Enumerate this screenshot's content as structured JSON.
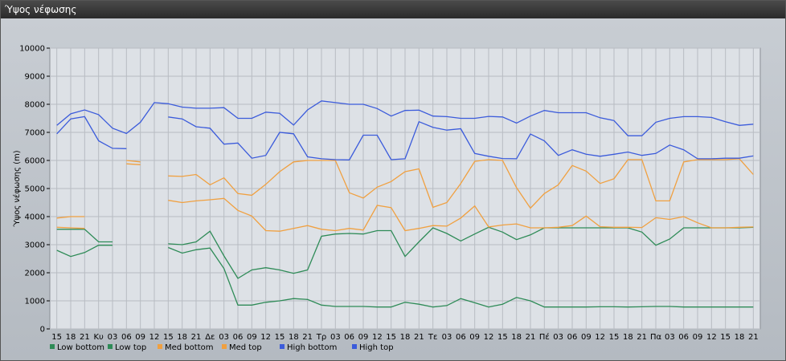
{
  "window": {
    "title": "Ύψος νέφωσης"
  },
  "colors": {
    "low": "#2e8b57",
    "med": "#f0a040",
    "high": "#3b5bdb",
    "grid": "#b8bcc2",
    "plot_bg": "#dde1e6"
  },
  "chart_data": {
    "type": "line",
    "ylabel": "Ύψος νέφωσης (m)",
    "xlabel": "",
    "ylim": [
      0,
      10000
    ],
    "yticks": [
      0,
      1000,
      2000,
      3000,
      4000,
      5000,
      6000,
      7000,
      8000,
      9000,
      10000
    ],
    "categories": [
      "15",
      "18",
      "21",
      "Κυ",
      "03",
      "06",
      "09",
      "12",
      "15",
      "18",
      "21",
      "Δε",
      "03",
      "06",
      "09",
      "12",
      "15",
      "18",
      "21",
      "Τρ",
      "03",
      "06",
      "09",
      "12",
      "15",
      "18",
      "21",
      "Τε",
      "03",
      "06",
      "09",
      "12",
      "15",
      "18",
      "21",
      "Πέ",
      "03",
      "06",
      "09",
      "12",
      "15",
      "18",
      "21",
      "Πα",
      "03",
      "06",
      "09",
      "12",
      "15",
      "18",
      "21"
    ],
    "legend": [
      "Low bottom",
      "Low top",
      "Med bottom",
      "Med top",
      "High bottom",
      "High top"
    ],
    "legend_position": "bottom-left",
    "series": [
      {
        "name": "Low bottom",
        "color_key": "low",
        "values": [
          2800,
          2580,
          2720,
          2980,
          2980,
          null,
          null,
          null,
          2900,
          2700,
          2820,
          2880,
          2150,
          850,
          850,
          950,
          1000,
          1080,
          1050,
          850,
          800,
          800,
          800,
          780,
          780,
          950,
          880,
          780,
          830,
          1080,
          930,
          780,
          880,
          1120,
          1000,
          780,
          780,
          780,
          780,
          790,
          790,
          780,
          790,
          800,
          800,
          780,
          780,
          780,
          780,
          780,
          780
        ]
      },
      {
        "name": "Low top",
        "color_key": "low",
        "values": [
          3550,
          3550,
          3550,
          3100,
          3100,
          null,
          null,
          null,
          3030,
          3000,
          3100,
          3480,
          2600,
          1800,
          2100,
          2180,
          2100,
          1980,
          2100,
          3300,
          3380,
          3400,
          3380,
          3500,
          3500,
          2580,
          3100,
          3600,
          3400,
          3130,
          3380,
          3620,
          3450,
          3180,
          3350,
          3600,
          3600,
          3600,
          3600,
          3600,
          3600,
          3600,
          3450,
          2980,
          3200,
          3600,
          3600,
          3600,
          3600,
          3600,
          3620
        ]
      },
      {
        "name": "Med bottom",
        "color_key": "med",
        "values": [
          3620,
          3600,
          3580,
          null,
          null,
          null,
          null,
          null,
          4580,
          4500,
          4560,
          4600,
          4650,
          4220,
          4020,
          3500,
          3480,
          3580,
          3680,
          3550,
          3500,
          3580,
          3520,
          4400,
          4320,
          3500,
          3580,
          3680,
          3660,
          3950,
          4380,
          3630,
          3700,
          3740,
          3600,
          3600,
          3620,
          3680,
          4020,
          3640,
          3620,
          3620,
          3610,
          3960,
          3900,
          4000,
          3780,
          3600,
          3600,
          3620,
          3630
        ]
      },
      {
        "name": "Med top",
        "color_key": "med",
        "values": [
          3950,
          4000,
          4000,
          null,
          null,
          null,
          null,
          null,
          5450,
          5430,
          5500,
          5130,
          5380,
          4820,
          4760,
          5150,
          5600,
          5950,
          6000,
          6000,
          6000,
          4850,
          4660,
          5050,
          5250,
          5600,
          5700,
          4330,
          4500,
          5180,
          5970,
          6030,
          6000,
          5030,
          4300,
          4820,
          5130,
          5820,
          5620,
          5180,
          5350,
          6030,
          6030,
          4560,
          4560,
          5950,
          6030,
          6030,
          6030,
          6060,
          5500
        ]
      },
      {
        "name": "High bottom",
        "color_key": "high",
        "values": [
          6950,
          7480,
          7560,
          6700,
          6430,
          6420,
          null,
          null,
          7550,
          7480,
          7200,
          7150,
          6580,
          6620,
          6080,
          6180,
          7000,
          6950,
          6130,
          6060,
          6030,
          6020,
          6900,
          6900,
          6030,
          6060,
          7380,
          7180,
          7080,
          7130,
          6250,
          6150,
          6070,
          6060,
          6940,
          6700,
          6180,
          6380,
          6220,
          6150,
          6220,
          6300,
          6180,
          6250,
          6550,
          6380,
          6060,
          6060,
          6080,
          6080,
          6160
        ]
      },
      {
        "name": "High top",
        "color_key": "high",
        "values": [
          7250,
          7660,
          7800,
          7630,
          7150,
          6960,
          7360,
          8060,
          8020,
          7900,
          7860,
          7860,
          7880,
          7500,
          7500,
          7720,
          7680,
          7260,
          7800,
          8120,
          8060,
          8000,
          8000,
          7850,
          7580,
          7780,
          7790,
          7580,
          7560,
          7500,
          7500,
          7570,
          7550,
          7330,
          7580,
          7780,
          7700,
          7700,
          7700,
          7520,
          7420,
          6880,
          6880,
          7360,
          7500,
          7560,
          7560,
          7530,
          7380,
          7250,
          7290
        ]
      }
    ],
    "extra_segments": [
      {
        "color_key": "med",
        "x": [
          5,
          6
        ],
        "values": [
          6000,
          5950
        ]
      },
      {
        "color_key": "med",
        "x": [
          5,
          6
        ],
        "values": [
          5880,
          5850
        ]
      }
    ]
  }
}
